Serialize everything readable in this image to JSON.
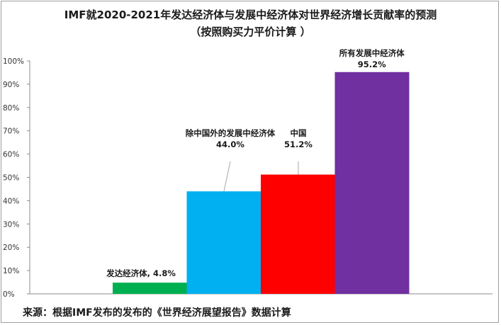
{
  "title": "IMF就2020-2021年发达经济体与发展中经济体对世界经济增长贡献率的预测",
  "subtitle": "（按照购买力平价计算 ）",
  "source": "来源：根据IMF发布的发布的《世界经济展望报告》数据计算",
  "chart_data": {
    "type": "bar",
    "title": "IMF就2020-2021年发达经济体与发展中经济体对世界经济增长贡献率的预测",
    "subtitle": "（按照购买力平价计算 ）",
    "categories": [
      "发达经济体",
      "除中国外的发展中经济体",
      "中国",
      "所有发展中经济体"
    ],
    "values": [
      4.8,
      44.0,
      51.2,
      95.2
    ],
    "data_labels": [
      [
        "发达经济体, 4.8%"
      ],
      [
        "除中国外的发展中经济体",
        "44.0%"
      ],
      [
        "中国",
        "51.2%"
      ],
      [
        "所有发展中经济体",
        "95.2%"
      ]
    ],
    "colors": [
      "#00b050",
      "#00b0f0",
      "#ff0000",
      "#7030a0"
    ],
    "y_ticks": [
      "0%",
      "10%",
      "20%",
      "30%",
      "40%",
      "50%",
      "60%",
      "70%",
      "80%",
      "90%",
      "100%"
    ],
    "ylim": [
      0,
      100
    ],
    "grid": false,
    "legend": "none"
  }
}
